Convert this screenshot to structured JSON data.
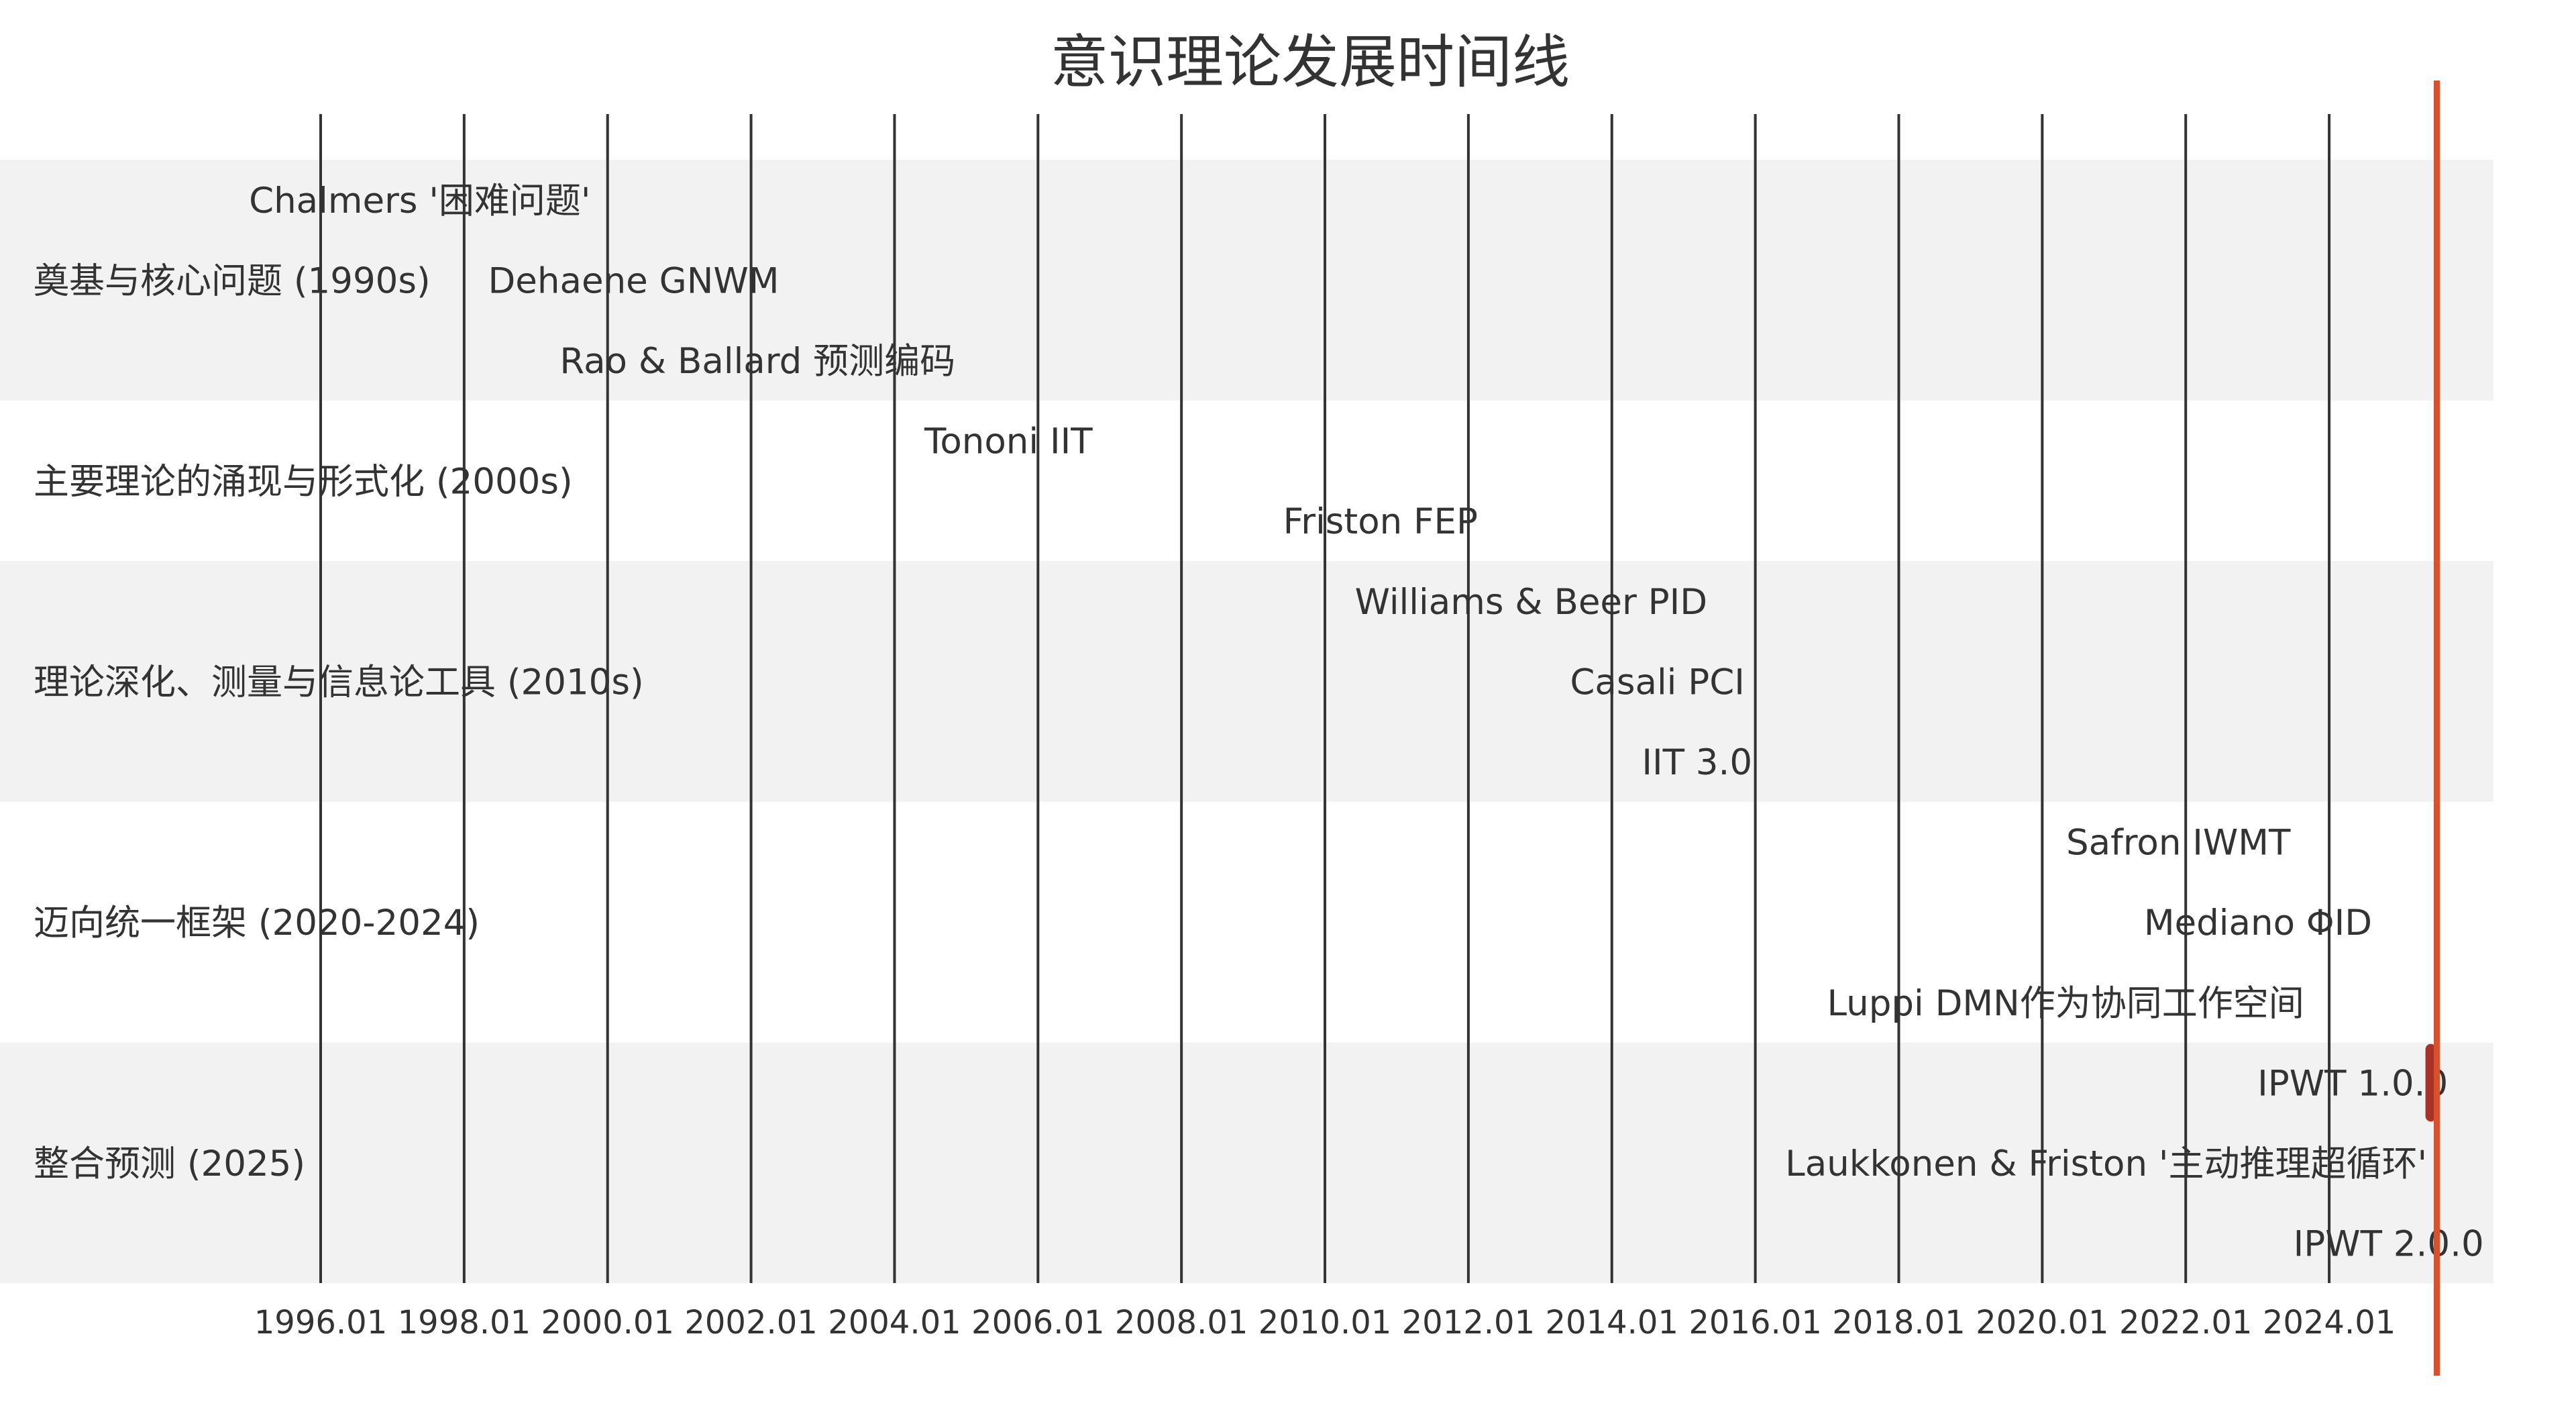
{
  "chart_data": {
    "type": "timeline",
    "title": "意识理论发展时间线",
    "xlim": [
      "1993-10",
      "2027-05"
    ],
    "x_ticks": [
      "1996.01",
      "1998.01",
      "2000.01",
      "2002.01",
      "2004.01",
      "2006.01",
      "2008.01",
      "2010.01",
      "2012.01",
      "2014.01",
      "2016.01",
      "2018.01",
      "2020.01",
      "2022.01",
      "2024.01"
    ],
    "grid": "vertical lines at each tick",
    "bands": [
      {
        "label": "奠基与核心问题 (1990s)",
        "shaded": true
      },
      {
        "label": "主要理论的涌现与形式化 (2000s)",
        "shaded": false
      },
      {
        "label": "理论深化、测量与信息论工具 (2010s)",
        "shaded": true
      },
      {
        "label": "迈向统一框架 (2020-2024)",
        "shaded": false
      },
      {
        "label": "整合预测 (2025)",
        "shaded": true
      }
    ],
    "events": [
      {
        "label": "Chalmers '困难问题'",
        "date": "1995-01",
        "band": 0
      },
      {
        "label": "Dehaene GNWM",
        "date": "1998-05",
        "band": 0
      },
      {
        "label": "Rao & Ballard 预测编码",
        "date": "1999-05",
        "band": 0
      },
      {
        "label": "Tononi IIT",
        "date": "2004-06",
        "band": 1
      },
      {
        "label": "Friston FEP",
        "date": "2009-06",
        "band": 1
      },
      {
        "label": "Williams & Beer PID",
        "date": "2010-06",
        "band": 2
      },
      {
        "label": "Casali PCI",
        "date": "2013-06",
        "band": 2
      },
      {
        "label": "IIT 3.0",
        "date": "2014-06",
        "band": 2
      },
      {
        "label": "Safron IWMT",
        "date": "2020-05",
        "band": 3
      },
      {
        "label": "Mediano ΦID",
        "date": "2021-06",
        "band": 3
      },
      {
        "label": "Luppi DMN作为协同工作空间",
        "date": "2017-01",
        "band": 3
      },
      {
        "label": "IPWT 1.0.0",
        "date": "2023-01",
        "band": 4
      },
      {
        "label": "Laukkonen & Friston '主动推理超循环'",
        "date": "2016-06",
        "band": 4
      },
      {
        "label": "IPWT 2.0.0",
        "date": "2023-07",
        "band": 4
      }
    ],
    "today_marker": {
      "date": "2025-07",
      "color": "#d9502f"
    },
    "highlight": {
      "date": "2025-06",
      "band": 4,
      "color": "#a93226"
    },
    "colors": {
      "band_shade": "#f2f2f2",
      "grid": "#333333",
      "marker": "#d9502f",
      "highlight": "#a93226"
    }
  }
}
